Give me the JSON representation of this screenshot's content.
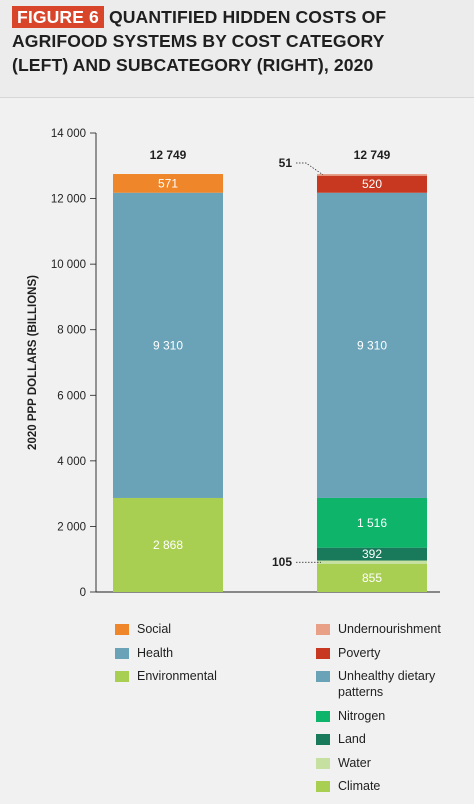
{
  "figure": {
    "label": "FIGURE 6",
    "title_line1": "QUANTIFIED HIDDEN COSTS OF",
    "title_line2": "AGRIFOOD SYSTEMS BY COST CATEGORY",
    "title_line3": "(LEFT) AND SUBCATEGORY (RIGHT), 2020"
  },
  "colors": {
    "social": "#f0862a",
    "health": "#6aa3b8",
    "environmental": "#a8cf52",
    "undernourishment": "#e8a086",
    "poverty": "#c8371f",
    "unhealthy": "#6aa3b8",
    "nitrogen": "#0db46a",
    "land": "#187a5a",
    "water": "#c5e0a0",
    "climate": "#a8cf52",
    "header_bg": "#ececec",
    "chart_bg": "#f1f1f1",
    "figure_label_bg": "#d8452b"
  },
  "chart_data": {
    "type": "bar",
    "stacked": true,
    "ylabel": "2020 PPP DOLLARS (BILLIONS)",
    "ylim": [
      0,
      14000
    ],
    "yticks": [
      "0",
      "2 000",
      "4 000",
      "6 000",
      "8 000",
      "10 000",
      "12 000",
      "14 000"
    ],
    "ytick_values": [
      0,
      2000,
      4000,
      6000,
      8000,
      10000,
      12000,
      14000
    ],
    "grid": false,
    "legend_placement": "bottom",
    "bars": [
      {
        "total_label": "12 749",
        "segments": [
          {
            "name": "Environmental",
            "value": 2868,
            "label": "2 868",
            "color_key": "environmental",
            "label_color": "#ffffff"
          },
          {
            "name": "Health",
            "value": 9310,
            "label": "9 310",
            "color_key": "health",
            "label_color": "#ffffff"
          },
          {
            "name": "Social",
            "value": 571,
            "label": "571",
            "color_key": "social",
            "label_color": "#ffffff"
          }
        ]
      },
      {
        "total_label": "12 749",
        "segments": [
          {
            "name": "Climate",
            "value": 855,
            "label": "855",
            "color_key": "climate",
            "label_color": "#ffffff"
          },
          {
            "name": "Water",
            "value": 105,
            "label": "105",
            "color_key": "water",
            "label_color": "#1f1f1f",
            "callout": true
          },
          {
            "name": "Land",
            "value": 392,
            "label": "392",
            "color_key": "land",
            "label_color": "#ffffff"
          },
          {
            "name": "Nitrogen",
            "value": 1516,
            "label": "1 516",
            "color_key": "nitrogen",
            "label_color": "#ffffff"
          },
          {
            "name": "Unhealthy dietary patterns",
            "value": 9310,
            "label": "9 310",
            "color_key": "unhealthy",
            "label_color": "#ffffff"
          },
          {
            "name": "Poverty",
            "value": 520,
            "label": "520",
            "color_key": "poverty",
            "label_color": "#ffffff"
          },
          {
            "name": "Undernourishment",
            "value": 51,
            "label": "51",
            "color_key": "undernourishment",
            "label_color": "#1f1f1f",
            "callout": true
          }
        ]
      }
    ]
  },
  "legend_left": [
    {
      "label": "Social",
      "color_key": "social"
    },
    {
      "label": "Health",
      "color_key": "health"
    },
    {
      "label": "Environmental",
      "color_key": "environmental"
    }
  ],
  "legend_right": [
    {
      "label": "Undernourishment",
      "color_key": "undernourishment"
    },
    {
      "label": "Poverty",
      "color_key": "poverty"
    },
    {
      "label": "Unhealthy dietary",
      "label2": "patterns",
      "color_key": "unhealthy"
    },
    {
      "label": "Nitrogen",
      "color_key": "nitrogen"
    },
    {
      "label": "Land",
      "color_key": "land"
    },
    {
      "label": "Water",
      "color_key": "water"
    },
    {
      "label": "Climate",
      "color_key": "climate"
    }
  ]
}
